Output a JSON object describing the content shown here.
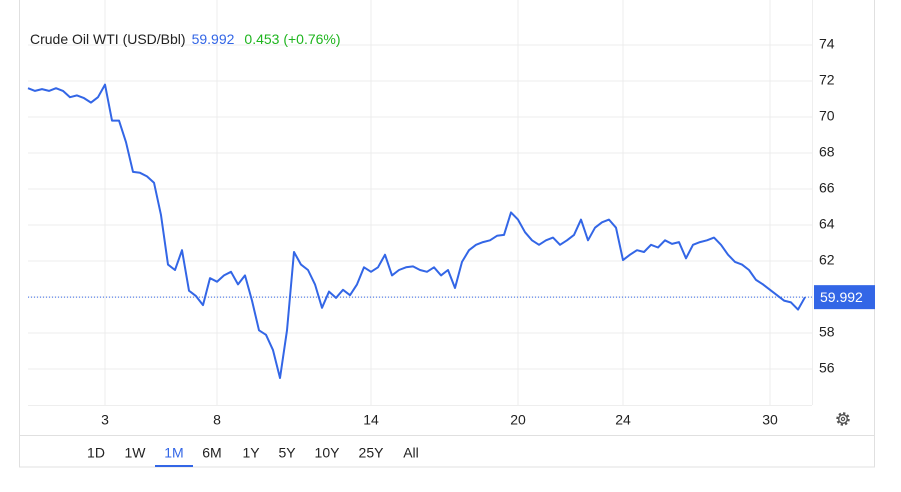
{
  "chart_data": {
    "type": "line",
    "title": "Crude Oil WTI (USD/Bbl)",
    "price": 59.992,
    "change": "0.453 (+0.76%)",
    "categories": [
      null,
      null,
      null,
      null,
      null,
      null,
      null,
      null,
      null,
      null,
      null,
      "3",
      null,
      null,
      null,
      null,
      null,
      null,
      null,
      null,
      null,
      null,
      null,
      null,
      null,
      null,
      null,
      "8",
      null,
      null,
      null,
      null,
      null,
      null,
      null,
      null,
      null,
      null,
      null,
      null,
      null,
      null,
      null,
      null,
      null,
      null,
      null,
      null,
      null,
      "14",
      null,
      null,
      null,
      null,
      null,
      null,
      null,
      null,
      null,
      null,
      null,
      null,
      null,
      null,
      null,
      null,
      null,
      null,
      null,
      null,
      "20",
      null,
      null,
      null,
      null,
      null,
      null,
      null,
      null,
      null,
      null,
      null,
      null,
      null,
      null,
      "24",
      null,
      null,
      null,
      null,
      null,
      null,
      null,
      null,
      null,
      null,
      null,
      null,
      null,
      null,
      null,
      null,
      null,
      null,
      null,
      null,
      "30",
      null,
      null,
      null,
      null,
      null
    ],
    "series": [
      {
        "color": "#3366e6",
        "values": [
          71.6,
          71.45,
          71.55,
          71.45,
          71.6,
          71.45,
          71.1,
          71.2,
          71.05,
          70.8,
          71.1,
          71.8,
          69.8,
          69.8,
          68.6,
          66.95,
          66.9,
          66.7,
          66.35,
          64.55,
          61.8,
          61.5,
          62.6,
          60.35,
          60.05,
          59.55,
          61.05,
          60.85,
          61.2,
          61.4,
          60.7,
          61.2,
          59.8,
          58.15,
          57.9,
          57.05,
          55.5,
          58.15,
          62.5,
          61.8,
          61.5,
          60.7,
          59.4,
          60.3,
          59.95,
          60.4,
          60.1,
          60.7,
          61.65,
          61.4,
          61.65,
          62.35,
          61.2,
          61.5,
          61.65,
          61.7,
          61.5,
          61.4,
          61.65,
          61.2,
          61.5,
          60.5,
          61.95,
          62.6,
          62.9,
          63.05,
          63.15,
          63.4,
          63.45,
          64.7,
          64.3,
          63.6,
          63.15,
          62.9,
          63.15,
          63.3,
          62.9,
          63.15,
          63.45,
          64.3,
          63.15,
          63.85,
          64.15,
          64.3,
          63.85,
          62.05,
          62.35,
          62.6,
          62.5,
          62.9,
          62.75,
          63.15,
          62.95,
          63.05,
          62.15,
          62.9,
          63.05,
          63.15,
          63.3,
          62.9,
          62.35,
          61.95,
          61.8,
          61.5,
          60.95,
          60.7,
          60.4,
          60.1,
          59.8,
          59.7,
          59.3,
          59.99
        ]
      }
    ],
    "ylim": [
      54,
      76
    ],
    "yticks": [
      56,
      58,
      60,
      62,
      64,
      66,
      68,
      70,
      72,
      74
    ],
    "grid": true,
    "up_color": "#1fb51f",
    "price_color": "#3366e6"
  },
  "range_bar": {
    "ranges": [
      "1D",
      "1W",
      "1M",
      "6M",
      "1Y",
      "5Y",
      "10Y",
      "25Y",
      "All"
    ],
    "active": "1M"
  }
}
